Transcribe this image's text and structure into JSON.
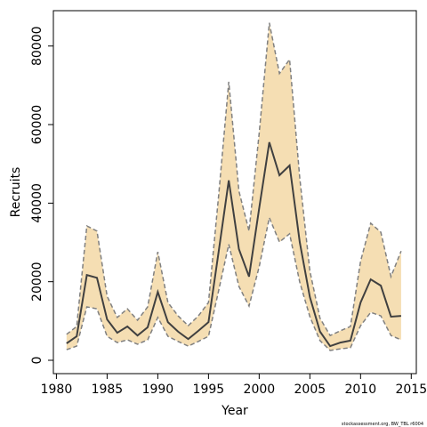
{
  "chart_data": {
    "type": "line",
    "xlabel": "Year",
    "ylabel": "Recruits",
    "footer": "stockassessment.org, BW_TBL r6004",
    "x": [
      1981,
      1982,
      1983,
      1984,
      1985,
      1986,
      1987,
      1988,
      1989,
      1990,
      1991,
      1992,
      1993,
      1994,
      1995,
      1996,
      1997,
      1998,
      1999,
      2000,
      2001,
      2002,
      2003,
      2004,
      2005,
      2006,
      2007,
      2008,
      2009,
      2010,
      2011,
      2012,
      2013,
      2014
    ],
    "values": [
      4300,
      6100,
      21700,
      21000,
      10400,
      7000,
      8600,
      6300,
      8400,
      17400,
      9700,
      7300,
      5400,
      7500,
      9700,
      27600,
      45800,
      28300,
      21300,
      38700,
      55500,
      47100,
      49600,
      30100,
      16100,
      7300,
      3600,
      4500,
      5000,
      14700,
      20600,
      19000,
      11100,
      11300
    ],
    "upper": [
      6600,
      8600,
      34200,
      32900,
      16300,
      10900,
      13100,
      10200,
      13600,
      27600,
      14700,
      11300,
      8800,
      11300,
      14700,
      41900,
      70900,
      43100,
      32900,
      57800,
      85900,
      73000,
      76600,
      46500,
      22700,
      10700,
      6300,
      7500,
      8600,
      25200,
      34900,
      32600,
      21300,
      27800
    ],
    "lower": [
      2700,
      3600,
      13600,
      13100,
      6100,
      4500,
      5200,
      4100,
      5200,
      10900,
      6100,
      4800,
      3600,
      4800,
      6100,
      17700,
      29500,
      18800,
      13800,
      23800,
      36300,
      30100,
      32200,
      19900,
      11100,
      5000,
      2500,
      2900,
      3200,
      8800,
      12200,
      11300,
      6300,
      5200
    ],
    "color": "#404040",
    "band_color": "#f5deb3",
    "bound_color": "#808080",
    "xlim": [
      1979.7,
      2015.5
    ],
    "xticks": [
      1980,
      1985,
      1990,
      1995,
      2000,
      2005,
      2010,
      2015
    ],
    "ylim": [
      -3400,
      89000
    ],
    "yticks": [
      0,
      20000,
      40000,
      60000,
      80000
    ]
  }
}
